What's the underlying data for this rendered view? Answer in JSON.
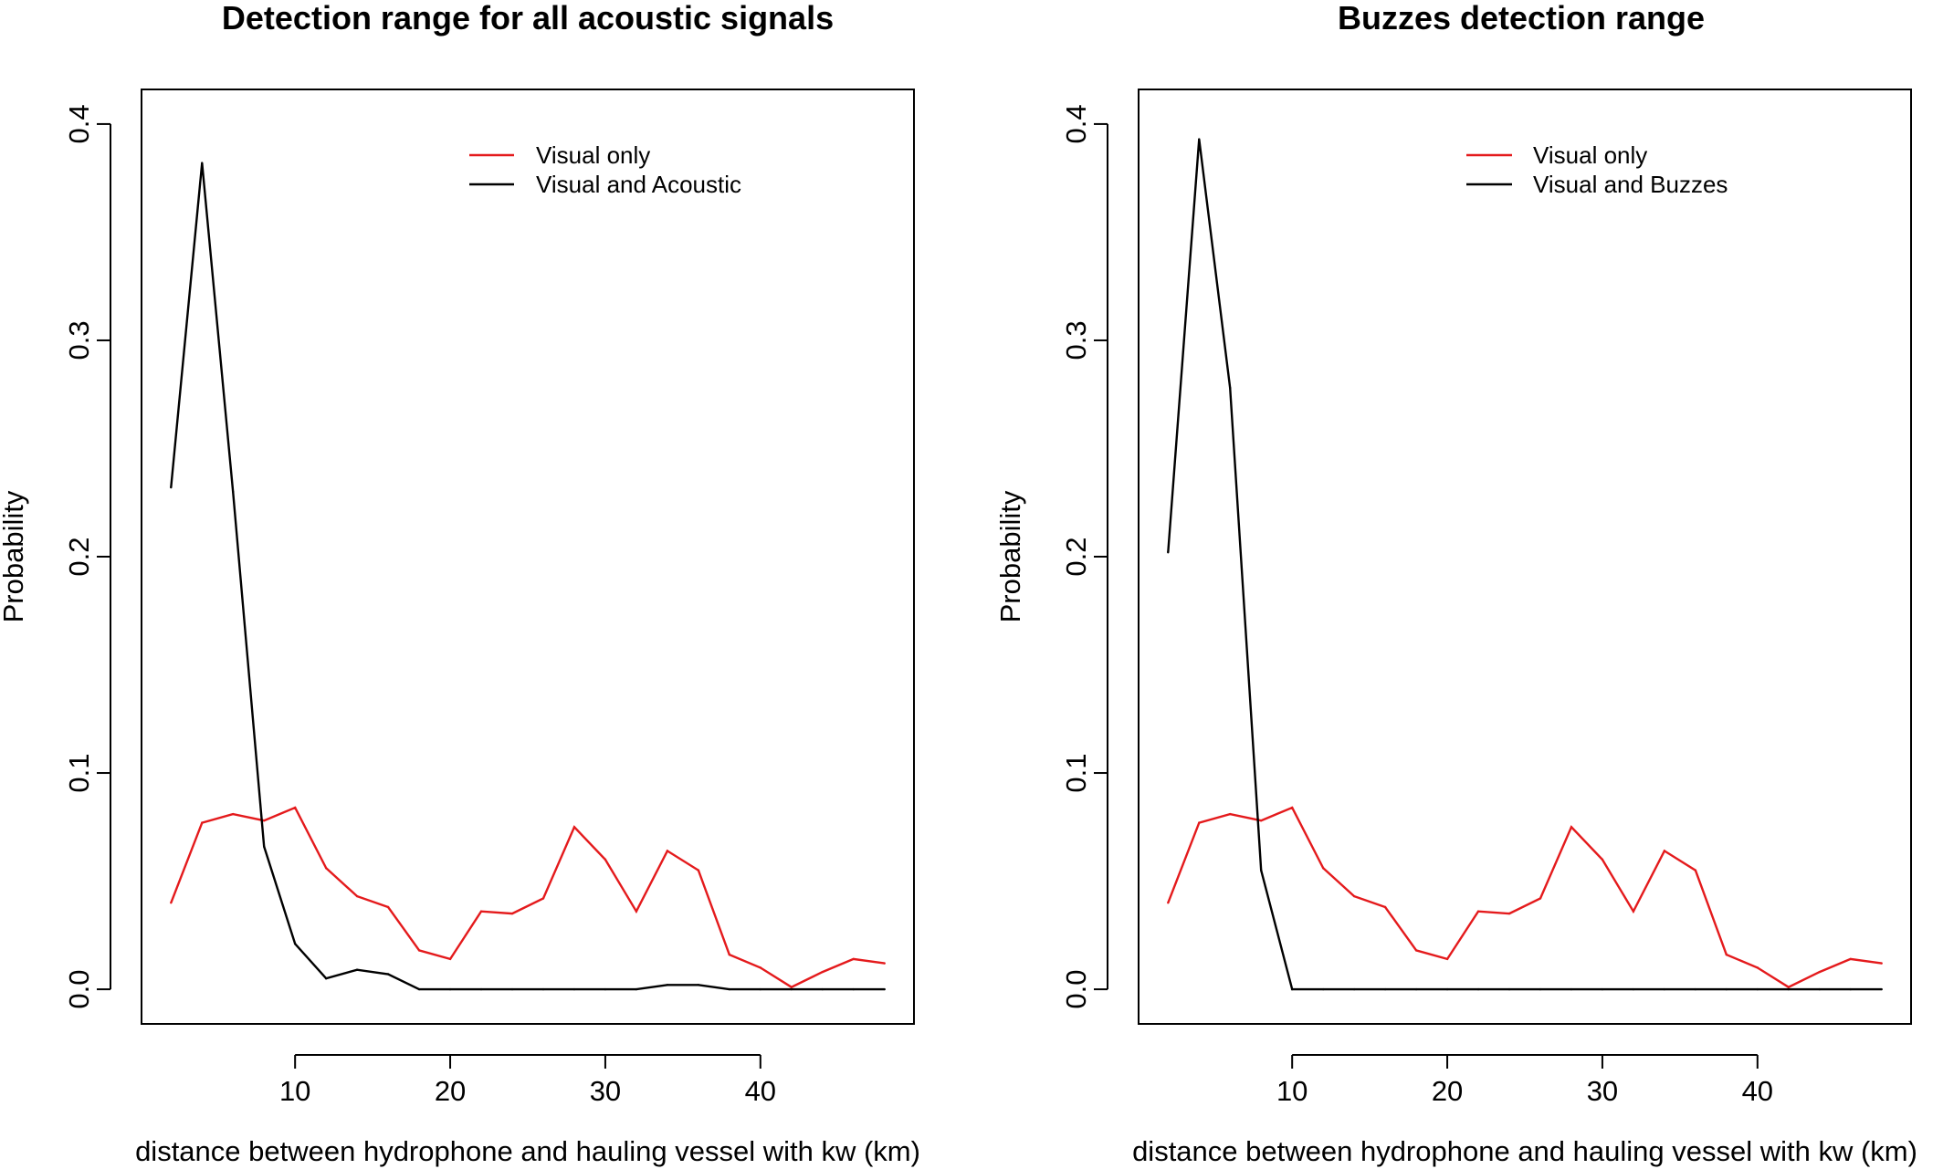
{
  "chart_data": [
    {
      "type": "line",
      "title": "Detection range for all acoustic signals",
      "xlabel": "distance between hydrophone and hauling vessel with kw (km)",
      "ylabel": "Probability",
      "xlim": [
        0.1,
        49.9
      ],
      "ylim": [
        -0.016,
        0.416
      ],
      "x_ticks": [
        10,
        20,
        30,
        40
      ],
      "y_ticks": [
        0.0,
        0.1,
        0.2,
        0.3,
        0.4
      ],
      "y_tick_labels": [
        "0.0",
        "0.1",
        "0.2",
        "0.3",
        "0.4"
      ],
      "grid": false,
      "legend_position": "top-right",
      "x": [
        2,
        4,
        6,
        8,
        10,
        12,
        14,
        16,
        18,
        20,
        22,
        24,
        26,
        28,
        30,
        32,
        34,
        36,
        38,
        40,
        42,
        44,
        46,
        48
      ],
      "series": [
        {
          "name": "Visual only",
          "color": "#e41a1c",
          "values": [
            0.04,
            0.077,
            0.081,
            0.078,
            0.084,
            0.056,
            0.043,
            0.038,
            0.018,
            0.014,
            0.036,
            0.035,
            0.042,
            0.075,
            0.06,
            0.036,
            0.064,
            0.055,
            0.016,
            0.01,
            0.001,
            0.008,
            0.014,
            0.012
          ]
        },
        {
          "name": "Visual and Acoustic",
          "color": "#000000",
          "values": [
            0.232,
            0.382,
            0.23,
            0.066,
            0.021,
            0.005,
            0.009,
            0.007,
            0.0,
            0.0,
            0.0,
            0.0,
            0.0,
            0.0,
            0.0,
            0.0,
            0.002,
            0.002,
            0.0,
            0.0,
            0.0,
            0.0,
            0.0,
            0.0
          ]
        }
      ]
    },
    {
      "type": "line",
      "title": "Buzzes detection range",
      "xlabel": "distance between hydrophone and hauling vessel with kw (km)",
      "ylabel": "Probability",
      "xlim": [
        0.1,
        49.9
      ],
      "ylim": [
        -0.016,
        0.416
      ],
      "x_ticks": [
        10,
        20,
        30,
        40
      ],
      "y_ticks": [
        0.0,
        0.1,
        0.2,
        0.3,
        0.4
      ],
      "y_tick_labels": [
        "0.0",
        "0.1",
        "0.2",
        "0.3",
        "0.4"
      ],
      "grid": false,
      "legend_position": "top-right",
      "x": [
        2,
        4,
        6,
        8,
        10,
        12,
        14,
        16,
        18,
        20,
        22,
        24,
        26,
        28,
        30,
        32,
        34,
        36,
        38,
        40,
        42,
        44,
        46,
        48
      ],
      "series": [
        {
          "name": "Visual only",
          "color": "#e41a1c",
          "values": [
            0.04,
            0.077,
            0.081,
            0.078,
            0.084,
            0.056,
            0.043,
            0.038,
            0.018,
            0.014,
            0.036,
            0.035,
            0.042,
            0.075,
            0.06,
            0.036,
            0.064,
            0.055,
            0.016,
            0.01,
            0.001,
            0.008,
            0.014,
            0.012
          ]
        },
        {
          "name": "Visual and Buzzes",
          "color": "#000000",
          "values": [
            0.202,
            0.393,
            0.278,
            0.055,
            0.0,
            0.0,
            0.0,
            0.0,
            0.0,
            0.0,
            0.0,
            0.0,
            0.0,
            0.0,
            0.0,
            0.0,
            0.0,
            0.0,
            0.0,
            0.0,
            0.0,
            0.0,
            0.0,
            0.0
          ]
        }
      ]
    }
  ]
}
